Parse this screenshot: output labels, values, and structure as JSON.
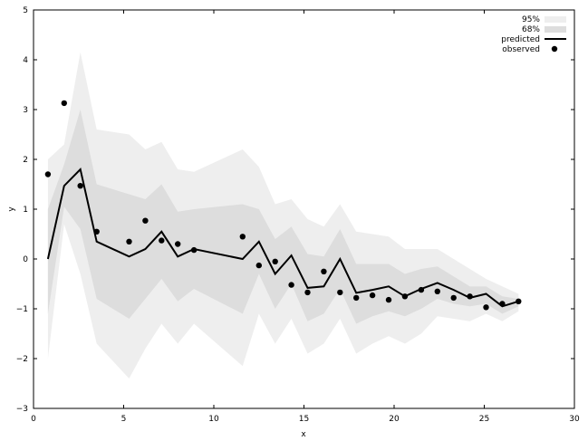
{
  "chart_data": {
    "type": "line",
    "title": "",
    "xlabel": "x",
    "ylabel": "y",
    "xlim": [
      0,
      30
    ],
    "ylim": [
      -3,
      5
    ],
    "xticks": [
      0,
      5,
      10,
      15,
      20,
      25,
      30
    ],
    "yticks": [
      -3,
      -2,
      -1,
      0,
      1,
      2,
      3,
      4,
      5
    ],
    "grid": false,
    "legend_position": "top-right",
    "x": [
      0.8,
      1.7,
      2.6,
      3.5,
      5.3,
      6.2,
      7.1,
      8.0,
      8.9,
      11.6,
      12.5,
      13.4,
      14.3,
      15.2,
      16.1,
      17.0,
      17.9,
      18.8,
      19.7,
      20.6,
      21.5,
      22.4,
      23.3,
      24.2,
      25.1,
      26.0,
      26.9
    ],
    "series": [
      {
        "name": "95%",
        "kind": "band",
        "color": "#eeeeee",
        "lower": [
          -2.0,
          0.7,
          -0.3,
          -1.7,
          -2.4,
          -1.8,
          -1.3,
          -1.7,
          -1.3,
          -2.15,
          -1.1,
          -1.7,
          -1.2,
          -1.9,
          -1.7,
          -1.2,
          -1.9,
          -1.7,
          -1.55,
          -1.7,
          -1.5,
          -1.15,
          -1.2,
          -1.25,
          -1.1,
          -1.25,
          -1.05
        ],
        "upper": [
          2.0,
          2.3,
          4.15,
          2.6,
          2.5,
          2.2,
          2.35,
          1.8,
          1.75,
          2.2,
          1.85,
          1.1,
          1.2,
          0.8,
          0.65,
          1.1,
          0.55,
          0.5,
          0.45,
          0.2,
          0.2,
          0.2,
          0.0,
          -0.2,
          -0.4,
          -0.55,
          -0.7
        ]
      },
      {
        "name": "68%",
        "kind": "band",
        "color": "#dddddd",
        "lower": [
          -1.1,
          1.05,
          0.6,
          -0.8,
          -1.2,
          -0.8,
          -0.4,
          -0.85,
          -0.6,
          -1.1,
          -0.3,
          -1.0,
          -0.5,
          -1.25,
          -1.1,
          -0.6,
          -1.3,
          -1.15,
          -1.05,
          -1.15,
          -1.0,
          -0.8,
          -0.9,
          -0.95,
          -0.9,
          -1.1,
          -0.95
        ],
        "upper": [
          1.0,
          1.9,
          3.0,
          1.5,
          1.3,
          1.2,
          1.5,
          0.95,
          1.0,
          1.1,
          1.0,
          0.4,
          0.65,
          0.1,
          0.05,
          0.6,
          -0.1,
          -0.1,
          -0.1,
          -0.3,
          -0.2,
          -0.15,
          -0.35,
          -0.55,
          -0.55,
          -0.75,
          -0.8
        ]
      },
      {
        "name": "predicted",
        "kind": "line",
        "color": "#000000",
        "values": [
          0.0,
          1.47,
          1.8,
          0.35,
          0.05,
          0.2,
          0.55,
          0.05,
          0.2,
          0.0,
          0.35,
          -0.3,
          0.07,
          -0.58,
          -0.55,
          0.0,
          -0.68,
          -0.62,
          -0.55,
          -0.75,
          -0.6,
          -0.48,
          -0.62,
          -0.78,
          -0.7,
          -0.95,
          -0.85
        ]
      },
      {
        "name": "observed",
        "kind": "scatter",
        "color": "#000000",
        "values": [
          1.7,
          3.13,
          1.47,
          0.55,
          0.35,
          0.77,
          0.37,
          0.3,
          0.18,
          0.45,
          -0.13,
          -0.05,
          -0.52,
          -0.67,
          -0.25,
          -0.67,
          -0.78,
          -0.73,
          -0.82,
          -0.75,
          -0.62,
          -0.65,
          -0.78,
          -0.75,
          -0.97,
          -0.9,
          -0.85
        ]
      }
    ]
  }
}
